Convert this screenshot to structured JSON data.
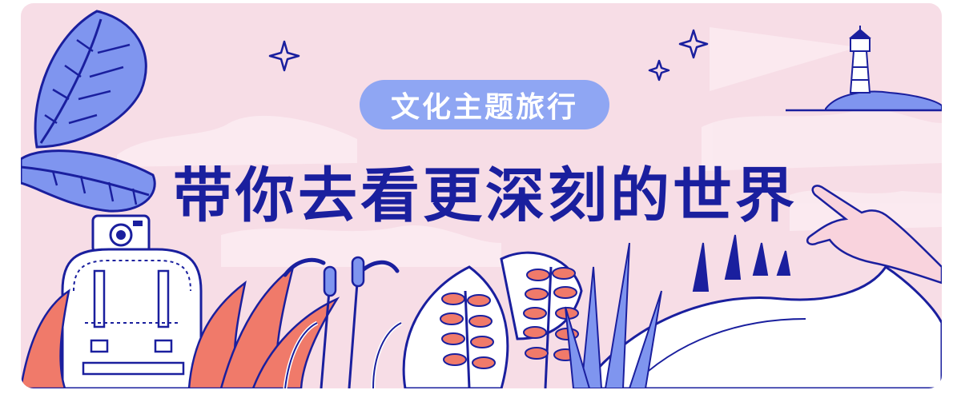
{
  "banner": {
    "badge_label": "文化主题旅行",
    "headline": "带你去看更深刻的世界"
  },
  "colors": {
    "background": "#f7dde6",
    "cloud": "#fbeaf0",
    "navy": "#1a1f9e",
    "periwinkle": "#7f95ef",
    "coral": "#f07a6a",
    "white": "#ffffff"
  },
  "icons": [
    "banana-leaf-icon",
    "backpack-icon",
    "camera-icon",
    "star-icon",
    "lighthouse-icon",
    "fern-icon",
    "open-book-icon",
    "pointing-hand-icon"
  ]
}
